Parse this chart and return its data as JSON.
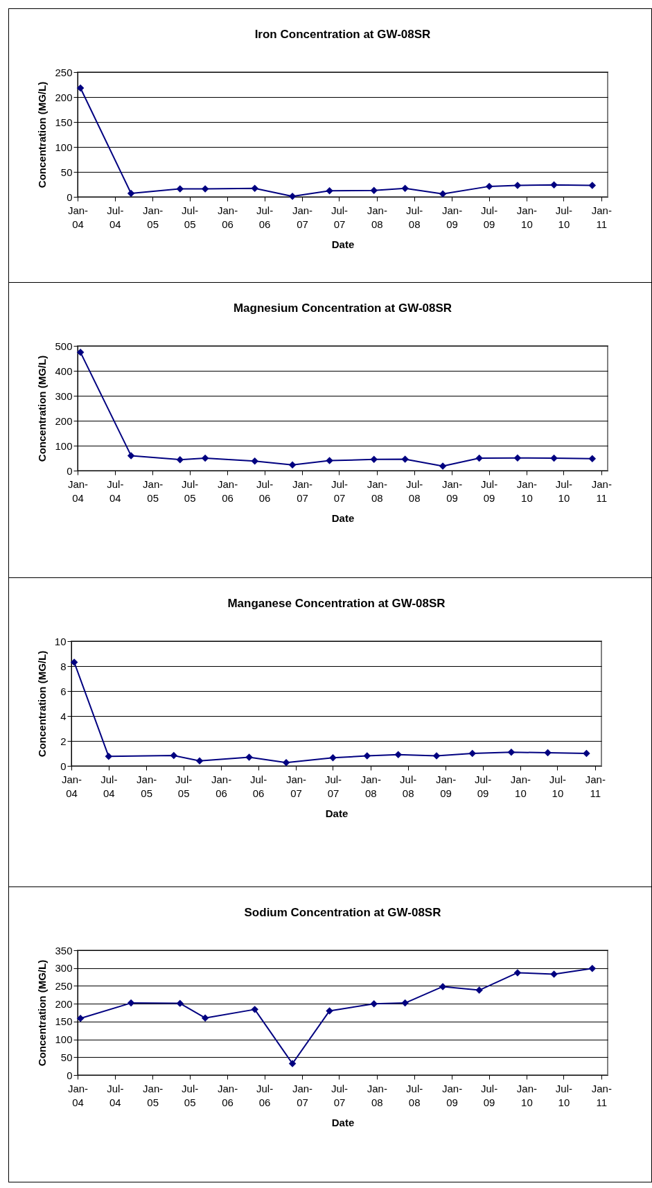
{
  "chart_data": [
    {
      "type": "line",
      "title": "Iron Concentration at GW-08SR",
      "xlabel": "Date",
      "ylabel": "Concentration (MG/L)",
      "marker": "diamond",
      "grid": "y",
      "x": [
        "2004-01-15",
        "2004-09-18",
        "2005-05-15",
        "2005-09-15",
        "2006-05-15",
        "2006-11-15",
        "2007-05-15",
        "2007-12-18",
        "2008-05-18",
        "2008-11-18",
        "2009-07-03",
        "2009-11-18",
        "2010-05-15",
        "2010-11-18"
      ],
      "series": [
        {
          "color": "#000080",
          "values": [
            218,
            7,
            16,
            16,
            17,
            1,
            12,
            13,
            17,
            6,
            21,
            23,
            24,
            23
          ]
        }
      ],
      "xlim": [
        "2004-01",
        "2011-02"
      ],
      "xticks": [
        {
          "value": "2004-01",
          "label": "Jan- 04"
        },
        {
          "value": "2004-07",
          "label": "Jul- 04"
        },
        {
          "value": "2005-01",
          "label": "Jan- 05"
        },
        {
          "value": "2005-07",
          "label": "Jul- 05"
        },
        {
          "value": "2006-01",
          "label": "Jan- 06"
        },
        {
          "value": "2006-07",
          "label": "Jul- 06"
        },
        {
          "value": "2007-01",
          "label": "Jan- 07"
        },
        {
          "value": "2007-07",
          "label": "Jul- 07"
        },
        {
          "value": "2008-01",
          "label": "Jan- 08"
        },
        {
          "value": "2008-07",
          "label": "Jul- 08"
        },
        {
          "value": "2009-01",
          "label": "Jan- 09"
        },
        {
          "value": "2009-07",
          "label": "Jul- 09"
        },
        {
          "value": "2010-01",
          "label": "Jan- 10"
        },
        {
          "value": "2010-07",
          "label": "Jul- 10"
        },
        {
          "value": "2011-01",
          "label": "Jan- 11"
        }
      ],
      "ylim": [
        0,
        250
      ],
      "yticks": [
        0,
        50,
        100,
        150,
        200,
        250
      ]
    },
    {
      "type": "line",
      "title": "Magnesium Concentration at GW-08SR",
      "xlabel": "Date",
      "ylabel": "Concentration (MG/L)",
      "marker": "diamond",
      "grid": "y",
      "x": [
        "2004-01-15",
        "2004-09-18",
        "2005-05-15",
        "2005-09-15",
        "2006-05-15",
        "2006-11-15",
        "2007-05-15",
        "2007-12-18",
        "2008-05-18",
        "2008-11-18",
        "2009-05-15",
        "2009-11-18",
        "2010-05-15",
        "2010-11-18"
      ],
      "series": [
        {
          "color": "#000080",
          "values": [
            474,
            60,
            44,
            50,
            38,
            23,
            40,
            45,
            46,
            18,
            50,
            51,
            50,
            48
          ]
        }
      ],
      "xlim": [
        "2004-01",
        "2011-02"
      ],
      "xticks": [
        {
          "value": "2004-01",
          "label": "Jan- 04"
        },
        {
          "value": "2004-07",
          "label": "Jul- 04"
        },
        {
          "value": "2005-01",
          "label": "Jan- 05"
        },
        {
          "value": "2005-07",
          "label": "Jul- 05"
        },
        {
          "value": "2006-01",
          "label": "Jan- 06"
        },
        {
          "value": "2006-07",
          "label": "Jul- 06"
        },
        {
          "value": "2007-01",
          "label": "Jan- 07"
        },
        {
          "value": "2007-07",
          "label": "Jul- 07"
        },
        {
          "value": "2008-01",
          "label": "Jan- 08"
        },
        {
          "value": "2008-07",
          "label": "Jul- 08"
        },
        {
          "value": "2009-01",
          "label": "Jan- 09"
        },
        {
          "value": "2009-07",
          "label": "Jul- 09"
        },
        {
          "value": "2010-01",
          "label": "Jan- 10"
        },
        {
          "value": "2010-07",
          "label": "Jul- 10"
        },
        {
          "value": "2011-01",
          "label": "Jan- 11"
        }
      ],
      "ylim": [
        0,
        500
      ],
      "yticks": [
        0,
        100,
        200,
        300,
        400,
        500
      ]
    },
    {
      "type": "line",
      "title": "Manganese Concentration at GW-08SR",
      "xlabel": "Date",
      "ylabel": "Concentration (MG/L)",
      "marker": "diamond",
      "grid": "y",
      "x": [
        "2004-01-15",
        "2004-07-01",
        "2005-05-15",
        "2005-09-18",
        "2006-05-18",
        "2006-11-15",
        "2007-07-01",
        "2007-12-15",
        "2008-05-15",
        "2008-11-18",
        "2009-05-12",
        "2009-11-18",
        "2010-05-15",
        "2010-11-20"
      ],
      "series": [
        {
          "color": "#000080",
          "values": [
            8.3,
            0.76,
            0.83,
            0.4,
            0.7,
            0.27,
            0.65,
            0.8,
            0.9,
            0.8,
            1.0,
            1.1,
            1.05,
            1.0
          ]
        }
      ],
      "xlim": [
        "2004-01",
        "2011-02"
      ],
      "xticks": [
        {
          "value": "2004-01",
          "label": "Jan- 04"
        },
        {
          "value": "2004-07",
          "label": "Jul- 04"
        },
        {
          "value": "2005-01",
          "label": "Jan- 05"
        },
        {
          "value": "2005-07",
          "label": "Jul- 05"
        },
        {
          "value": "2006-01",
          "label": "Jan- 06"
        },
        {
          "value": "2006-07",
          "label": "Jul- 06"
        },
        {
          "value": "2007-01",
          "label": "Jan- 07"
        },
        {
          "value": "2007-07",
          "label": "Jul- 07"
        },
        {
          "value": "2008-01",
          "label": "Jan- 08"
        },
        {
          "value": "2008-07",
          "label": "Jul- 08"
        },
        {
          "value": "2009-01",
          "label": "Jan- 09"
        },
        {
          "value": "2009-07",
          "label": "Jul- 09"
        },
        {
          "value": "2010-01",
          "label": "Jan- 10"
        },
        {
          "value": "2010-07",
          "label": "Jul- 10"
        },
        {
          "value": "2011-01",
          "label": "Jan- 11"
        }
      ],
      "ylim": [
        0,
        10
      ],
      "yticks": [
        0,
        2,
        4,
        6,
        8,
        10
      ]
    },
    {
      "type": "line",
      "title": "Sodium Concentration at GW-08SR",
      "xlabel": "Date",
      "ylabel": "Concentration (MG/L)",
      "marker": "diamond",
      "grid": "y",
      "x": [
        "2004-01-15",
        "2004-09-18",
        "2005-05-15",
        "2005-09-15",
        "2006-05-15",
        "2006-11-15",
        "2007-05-15",
        "2007-12-18",
        "2008-05-18",
        "2008-11-18",
        "2009-05-15",
        "2009-11-18",
        "2010-05-15",
        "2010-11-18"
      ],
      "series": [
        {
          "color": "#000080",
          "values": [
            159,
            202,
            201,
            160,
            184,
            32,
            180,
            200,
            202,
            248,
            238,
            287,
            283,
            299
          ]
        }
      ],
      "xlim": [
        "2004-01",
        "2011-02"
      ],
      "xticks": [
        {
          "value": "2004-01",
          "label": "Jan- 04"
        },
        {
          "value": "2004-07",
          "label": "Jul- 04"
        },
        {
          "value": "2005-01",
          "label": "Jan- 05"
        },
        {
          "value": "2005-07",
          "label": "Jul- 05"
        },
        {
          "value": "2006-01",
          "label": "Jan- 06"
        },
        {
          "value": "2006-07",
          "label": "Jul- 06"
        },
        {
          "value": "2007-01",
          "label": "Jan- 07"
        },
        {
          "value": "2007-07",
          "label": "Jul- 07"
        },
        {
          "value": "2008-01",
          "label": "Jan- 08"
        },
        {
          "value": "2008-07",
          "label": "Jul- 08"
        },
        {
          "value": "2009-01",
          "label": "Jan- 09"
        },
        {
          "value": "2009-07",
          "label": "Jul- 09"
        },
        {
          "value": "2010-01",
          "label": "Jan- 10"
        },
        {
          "value": "2010-07",
          "label": "Jul- 10"
        },
        {
          "value": "2011-01",
          "label": "Jan- 11"
        }
      ],
      "ylim": [
        0,
        350
      ],
      "yticks": [
        0,
        50,
        100,
        150,
        200,
        250,
        300,
        350
      ]
    }
  ]
}
